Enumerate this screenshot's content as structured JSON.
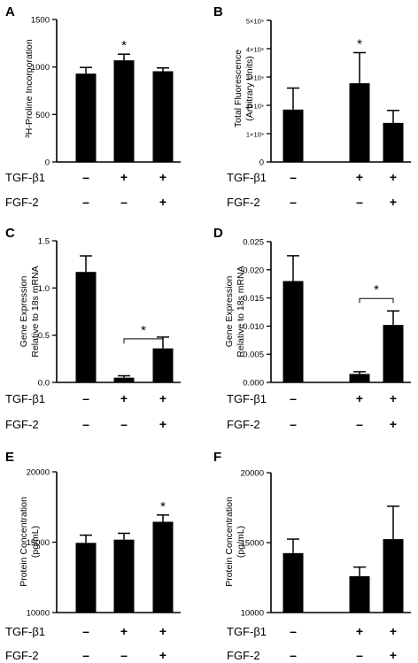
{
  "chart_data": [
    {
      "panel": "A",
      "type": "bar",
      "ylabel": "³H-Proline Incorporation",
      "ylim": [
        0,
        1500
      ],
      "yticks": [
        0,
        500,
        1000,
        1500
      ],
      "ytick_labels": [
        "0",
        "500",
        "1000",
        "1500"
      ],
      "values": [
        930,
        1070,
        955
      ],
      "errors": [
        65,
        65,
        35
      ],
      "stars": [
        false,
        true,
        false
      ],
      "bracket": null,
      "rows": [
        {
          "label": "TGF-β1",
          "signs": [
            "–",
            "+",
            "+"
          ]
        },
        {
          "label": "FGF-2",
          "signs": [
            "–",
            "–",
            "+"
          ]
        }
      ]
    },
    {
      "panel": "B",
      "type": "bar",
      "ylabel_lines": [
        "Total Fluorescence",
        "(Arbitrary Units)"
      ],
      "ylim": [
        0,
        5000000000
      ],
      "yticks": [
        0,
        1000000000,
        2000000000,
        3000000000,
        4000000000,
        5000000000
      ],
      "ytick_labels": [
        "0",
        "1×10⁹",
        "2×10⁹",
        "3×10⁹",
        "4×10⁹",
        "5×10⁹"
      ],
      "values": [
        1850000000,
        2780000000,
        1380000000
      ],
      "errors": [
        760000000,
        1080000000,
        440000000
      ],
      "stars": [
        false,
        true,
        false
      ],
      "bracket": null,
      "rows": [
        {
          "label": "TGF-β1",
          "signs": [
            "–",
            "+",
            "+"
          ]
        },
        {
          "label": "FGF-2",
          "signs": [
            "–",
            "–",
            "+"
          ]
        }
      ]
    },
    {
      "panel": "C",
      "type": "bar",
      "ylabel_lines": [
        "Gene Expression",
        "Relative to 18s mRNA"
      ],
      "ylim": [
        0,
        1.5
      ],
      "yticks": [
        0,
        0.5,
        1.0,
        1.5
      ],
      "ytick_labels": [
        "0.0",
        "0.5",
        "1.0",
        "1.5"
      ],
      "values": [
        1.17,
        0.05,
        0.36
      ],
      "errors": [
        0.17,
        0.02,
        0.12
      ],
      "stars": [
        false,
        false,
        false
      ],
      "bracket": {
        "from": 1,
        "to": 2,
        "y": 0.46,
        "label": "*"
      },
      "rows": [
        {
          "label": "TGF-β1",
          "signs": [
            "–",
            "+",
            "+"
          ]
        },
        {
          "label": "FGF-2",
          "signs": [
            "–",
            "–",
            "+"
          ]
        }
      ]
    },
    {
      "panel": "D",
      "type": "bar",
      "ylabel_lines": [
        "Gene Expression",
        "Relative to 18s mRNA"
      ],
      "ylim": [
        0,
        0.025
      ],
      "yticks": [
        0,
        0.005,
        0.01,
        0.015,
        0.02,
        0.025
      ],
      "ytick_labels": [
        "0.000",
        "0.005",
        "0.010",
        "0.015",
        "0.020",
        "0.025"
      ],
      "values": [
        0.018,
        0.0015,
        0.0102
      ],
      "errors": [
        0.0045,
        0.0004,
        0.0025
      ],
      "stars": [
        false,
        false,
        false
      ],
      "bracket": {
        "from": 1,
        "to": 2,
        "y": 0.0149,
        "label": "*"
      },
      "rows": [
        {
          "label": "TGF-β1",
          "signs": [
            "–",
            "+",
            "+"
          ]
        },
        {
          "label": "FGF-2",
          "signs": [
            "–",
            "–",
            "+"
          ]
        }
      ]
    },
    {
      "panel": "E",
      "type": "bar",
      "ylabel_lines": [
        "Protein Concentration",
        "(pg/mL)"
      ],
      "ylim": [
        10000,
        20000
      ],
      "yticks": [
        10000,
        15000,
        20000
      ],
      "ytick_labels": [
        "10000",
        "15000",
        "20000"
      ],
      "values": [
        14950,
        15180,
        16450
      ],
      "errors": [
        550,
        450,
        480
      ],
      "stars": [
        false,
        false,
        true
      ],
      "bracket": null,
      "rows": [
        {
          "label": "TGF-β1",
          "signs": [
            "–",
            "+",
            "+"
          ]
        },
        {
          "label": "FGF-2",
          "signs": [
            "–",
            "–",
            "+"
          ]
        }
      ]
    },
    {
      "panel": "F",
      "type": "bar",
      "ylabel_lines": [
        "Protein Concentration",
        "(pg/mL)"
      ],
      "ylim": [
        10000,
        20000
      ],
      "yticks": [
        10000,
        15000,
        20000
      ],
      "ytick_labels": [
        "10000",
        "15000",
        "20000"
      ],
      "values": [
        14250,
        12600,
        15250
      ],
      "errors": [
        1000,
        650,
        2350
      ],
      "stars": [
        false,
        false,
        false
      ],
      "bracket": null,
      "rows": [
        {
          "label": "TGF-β1",
          "signs": [
            "–",
            "+",
            "+"
          ]
        },
        {
          "label": "FGF-2",
          "signs": [
            "–",
            "–",
            "+"
          ]
        }
      ]
    }
  ]
}
